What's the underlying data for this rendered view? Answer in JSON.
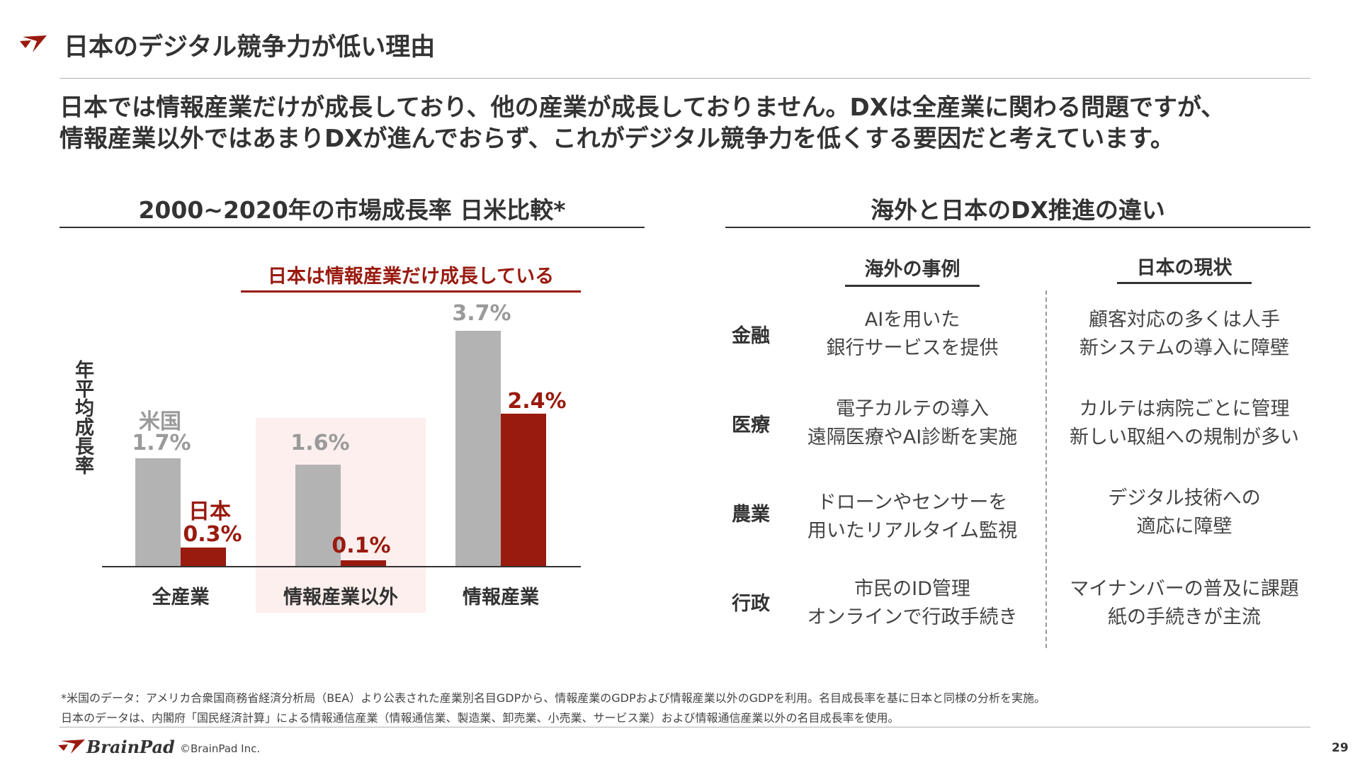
{
  "colors": {
    "accent": "#991a0f",
    "us_bar": "#b3b3b3",
    "japan_bar": "#991a0f",
    "highlight_bg": "#fcefed",
    "rule": "#999999"
  },
  "header": {
    "title": "日本のデジタル競争力が低い理由",
    "logo_icon": "brainpad-mark-icon"
  },
  "lead": {
    "line1": "日本では情報産業だけが成長しており、他の産業が成長しておりません。DXは全産業に関わる問題ですが、",
    "line2": "情報産業以外ではあまりDXが進んでおらず、これがデジタル競争力を低くする要因だと考えています。"
  },
  "left_section": {
    "title": "2000~2020年の市場成長率 日米比較*",
    "callout": "日本は情報産業だけ成長している",
    "ylabel": "年平均成長率",
    "series_labels": {
      "us": "米国",
      "japan": "日本"
    }
  },
  "chart_data": {
    "type": "bar",
    "title": "2000~2020年の市場成長率 日米比較*",
    "xlabel": "",
    "ylabel": "年平均成長率",
    "categories": [
      "全産業",
      "情報産業以外",
      "情報産業"
    ],
    "series": [
      {
        "name": "米国",
        "values": [
          1.7,
          1.6,
          3.7
        ],
        "labels": [
          "1.7%",
          "1.6%",
          "3.7%"
        ],
        "color": "#b3b3b3"
      },
      {
        "name": "日本",
        "values": [
          0.3,
          0.1,
          2.4
        ],
        "labels": [
          "0.3%",
          "0.1%",
          "2.4%"
        ],
        "color": "#991a0f"
      }
    ],
    "ylim": [
      0,
      3.7
    ],
    "grid": false,
    "highlight_category": "情報産業以外",
    "annotation": "日本は情報産業だけ成長している"
  },
  "right_section": {
    "title": "海外と日本のDX推進の違い",
    "columns": [
      "海外の事例",
      "日本の現状"
    ],
    "rows": [
      {
        "label": "金融",
        "overseas": [
          "AIを用いた",
          "銀行サービスを提供"
        ],
        "japan": [
          "顧客対応の多くは人手",
          "新システムの導入に障壁"
        ]
      },
      {
        "label": "医療",
        "overseas": [
          "電子カルテの導入",
          "遠隔医療やAI診断を実施"
        ],
        "japan": [
          "カルテは病院ごとに管理",
          "新しい取組への規制が多い"
        ]
      },
      {
        "label": "農業",
        "overseas": [
          "ドローンやセンサーを",
          "用いたリアルタイム監視"
        ],
        "japan": [
          "デジタル技術への",
          "適応に障壁"
        ]
      },
      {
        "label": "行政",
        "overseas": [
          "市民のID管理",
          "オンラインで行政手続き"
        ],
        "japan": [
          "マイナンバーの普及に課題",
          "紙の手続きが主流"
        ]
      }
    ]
  },
  "footnotes": {
    "line1": "*米国のデータ：アメリカ合衆国商務省経済分析局（BEA）より公表された産業別名目GDPから、情報産業のGDPおよび情報産業以外のGDPを利用。名目成長率を基に日本と同様の分析を実施。",
    "line2": "日本のデータは、内閣府「国民経済計算」による情報通信産業（情報通信業、製造業、卸売業、小売業、サービス業）および情報通信産業以外の名目成長率を使用。"
  },
  "footer": {
    "brand": "BrainPad",
    "copyright": "©BrainPad Inc.",
    "page_number": "29"
  }
}
